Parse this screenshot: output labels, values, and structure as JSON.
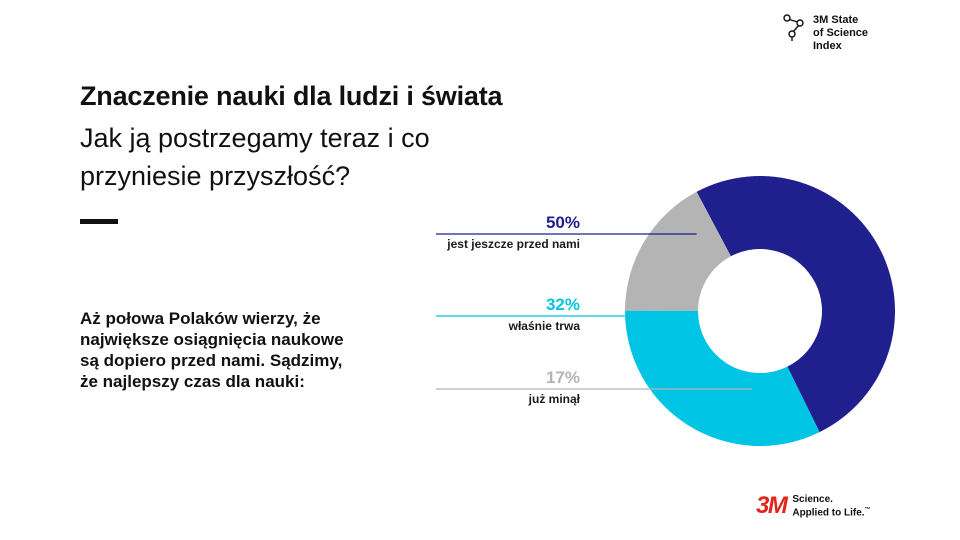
{
  "brand_index": {
    "line1": "3M State",
    "line2": "of Science",
    "line3": "Index",
    "icon": "molecule-icon"
  },
  "title": "Znaczenie nauki dla ludzi i świata",
  "subtitle": "Jak ją postrzegamy teraz i co przyniesie przyszłość?",
  "body": "Aż połowa Polaków wierzy, że największe osiągnięcia naukowe są dopiero przed nami. Sądzimy, że najlepszy czas dla nauki:",
  "chart_data": {
    "type": "pie",
    "donut": true,
    "series": [
      {
        "pct_label": "50%",
        "label": "jest jeszcze przed nami",
        "value": 50,
        "color": "#1f1f8e"
      },
      {
        "pct_label": "32%",
        "label": "właśnie trwa",
        "value": 32,
        "color": "#00c4e3"
      },
      {
        "pct_label": "17%",
        "label": "już minął",
        "value": 17,
        "color": "#b4b4b4"
      }
    ]
  },
  "footer": {
    "logo": "3M",
    "tagline1": "Science.",
    "tagline2": "Applied to Life.",
    "tm": "™"
  }
}
